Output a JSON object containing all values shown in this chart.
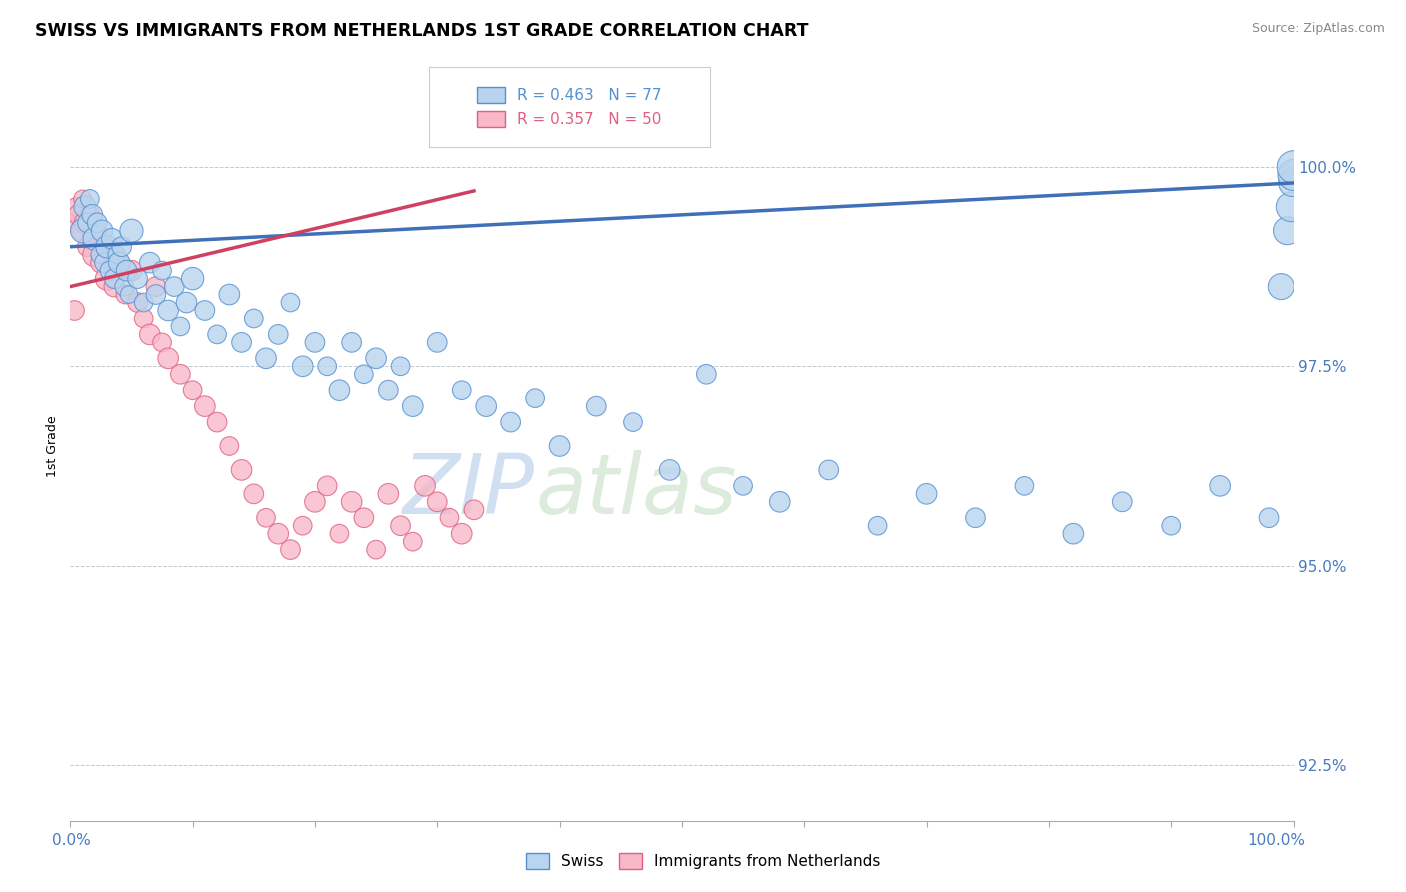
{
  "title": "SWISS VS IMMIGRANTS FROM NETHERLANDS 1ST GRADE CORRELATION CHART",
  "source": "Source: ZipAtlas.com",
  "ylabel": "1st Grade",
  "yticks": [
    92.5,
    95.0,
    97.5,
    100.0
  ],
  "ytick_labels": [
    "92.5%",
    "95.0%",
    "97.5%",
    "100.0%"
  ],
  "xmin": 0.0,
  "xmax": 100.0,
  "ymin": 91.8,
  "ymax": 101.2,
  "legend_blue_label": "R = 0.463   N = 77",
  "legend_pink_label": "R = 0.357   N = 50",
  "blue_fill": "#b8d4ee",
  "pink_fill": "#f8b8c8",
  "blue_edge": "#5590d0",
  "pink_edge": "#e06080",
  "blue_line": "#4070b8",
  "pink_line": "#d04060",
  "watermark_zip": "ZIP",
  "watermark_atlas": "atlas",
  "blue_scatter_x": [
    1.0,
    1.2,
    1.4,
    1.6,
    1.8,
    2.0,
    2.2,
    2.4,
    2.6,
    2.8,
    3.0,
    3.2,
    3.4,
    3.6,
    3.8,
    4.0,
    4.2,
    4.4,
    4.6,
    4.8,
    5.0,
    5.5,
    6.0,
    6.5,
    7.0,
    7.5,
    8.0,
    8.5,
    9.0,
    9.5,
    10.0,
    11.0,
    12.0,
    13.0,
    14.0,
    15.0,
    16.0,
    17.0,
    18.0,
    19.0,
    20.0,
    21.0,
    22.0,
    23.0,
    24.0,
    25.0,
    26.0,
    27.0,
    28.0,
    30.0,
    32.0,
    34.0,
    36.0,
    38.0,
    40.0,
    43.0,
    46.0,
    49.0,
    52.0,
    55.0,
    58.0,
    62.0,
    66.0,
    70.0,
    74.0,
    78.0,
    82.0,
    86.0,
    90.0,
    94.0,
    98.0,
    99.0,
    99.5,
    99.8,
    99.9,
    100.0,
    100.0
  ],
  "blue_scatter_y": [
    99.2,
    99.5,
    99.3,
    99.6,
    99.4,
    99.1,
    99.3,
    98.9,
    99.2,
    98.8,
    99.0,
    98.7,
    99.1,
    98.6,
    98.9,
    98.8,
    99.0,
    98.5,
    98.7,
    98.4,
    99.2,
    98.6,
    98.3,
    98.8,
    98.4,
    98.7,
    98.2,
    98.5,
    98.0,
    98.3,
    98.6,
    98.2,
    97.9,
    98.4,
    97.8,
    98.1,
    97.6,
    97.9,
    98.3,
    97.5,
    97.8,
    97.5,
    97.2,
    97.8,
    97.4,
    97.6,
    97.2,
    97.5,
    97.0,
    97.8,
    97.2,
    97.0,
    96.8,
    97.1,
    96.5,
    97.0,
    96.8,
    96.2,
    97.4,
    96.0,
    95.8,
    96.2,
    95.5,
    95.9,
    95.6,
    96.0,
    95.4,
    95.8,
    95.5,
    96.0,
    95.6,
    98.5,
    99.2,
    99.5,
    99.8,
    99.9,
    100.0
  ],
  "blue_scatter_s": [
    30,
    25,
    20,
    18,
    22,
    28,
    20,
    16,
    24,
    20,
    26,
    18,
    22,
    20,
    16,
    24,
    20,
    18,
    22,
    16,
    28,
    20,
    18,
    22,
    20,
    18,
    22,
    20,
    18,
    22,
    26,
    20,
    18,
    22,
    20,
    18,
    22,
    20,
    18,
    22,
    20,
    18,
    22,
    20,
    18,
    22,
    20,
    18,
    22,
    20,
    18,
    22,
    20,
    18,
    22,
    20,
    18,
    22,
    20,
    18,
    22,
    20,
    18,
    22,
    20,
    18,
    22,
    20,
    18,
    22,
    20,
    35,
    40,
    45,
    38,
    50,
    55
  ],
  "pink_scatter_x": [
    0.3,
    0.5,
    0.7,
    0.9,
    1.0,
    1.2,
    1.4,
    1.6,
    1.8,
    2.0,
    2.2,
    2.5,
    2.8,
    3.0,
    3.3,
    3.6,
    4.0,
    4.5,
    5.0,
    5.5,
    6.0,
    6.5,
    7.0,
    7.5,
    8.0,
    9.0,
    10.0,
    11.0,
    12.0,
    13.0,
    14.0,
    15.0,
    16.0,
    17.0,
    18.0,
    19.0,
    20.0,
    21.0,
    22.0,
    23.0,
    24.0,
    25.0,
    26.0,
    27.0,
    28.0,
    29.0,
    30.0,
    31.0,
    32.0,
    33.0
  ],
  "pink_scatter_y": [
    99.3,
    99.5,
    99.4,
    99.2,
    99.6,
    99.3,
    99.0,
    99.4,
    99.1,
    98.9,
    99.2,
    98.8,
    99.0,
    98.6,
    98.9,
    98.5,
    98.8,
    98.4,
    98.7,
    98.3,
    98.1,
    97.9,
    98.5,
    97.8,
    97.6,
    97.4,
    97.2,
    97.0,
    96.8,
    96.5,
    96.2,
    95.9,
    95.6,
    95.4,
    95.2,
    95.5,
    95.8,
    96.0,
    95.4,
    95.8,
    95.6,
    95.2,
    95.9,
    95.5,
    95.3,
    96.0,
    95.8,
    95.6,
    95.4,
    95.7
  ],
  "pink_scatter_s": [
    20,
    18,
    22,
    20,
    16,
    24,
    20,
    18,
    22,
    30,
    18,
    22,
    20,
    28,
    18,
    22,
    20,
    18,
    22,
    20,
    18,
    22,
    20,
    18,
    22,
    20,
    18,
    22,
    20,
    18,
    22,
    20,
    18,
    22,
    20,
    18,
    22,
    20,
    18,
    22,
    20,
    18,
    22,
    20,
    18,
    22,
    20,
    18,
    22,
    20
  ],
  "large_pink_x": [
    0.3
  ],
  "large_pink_y": [
    98.2
  ],
  "large_pink_s": [
    200
  ]
}
